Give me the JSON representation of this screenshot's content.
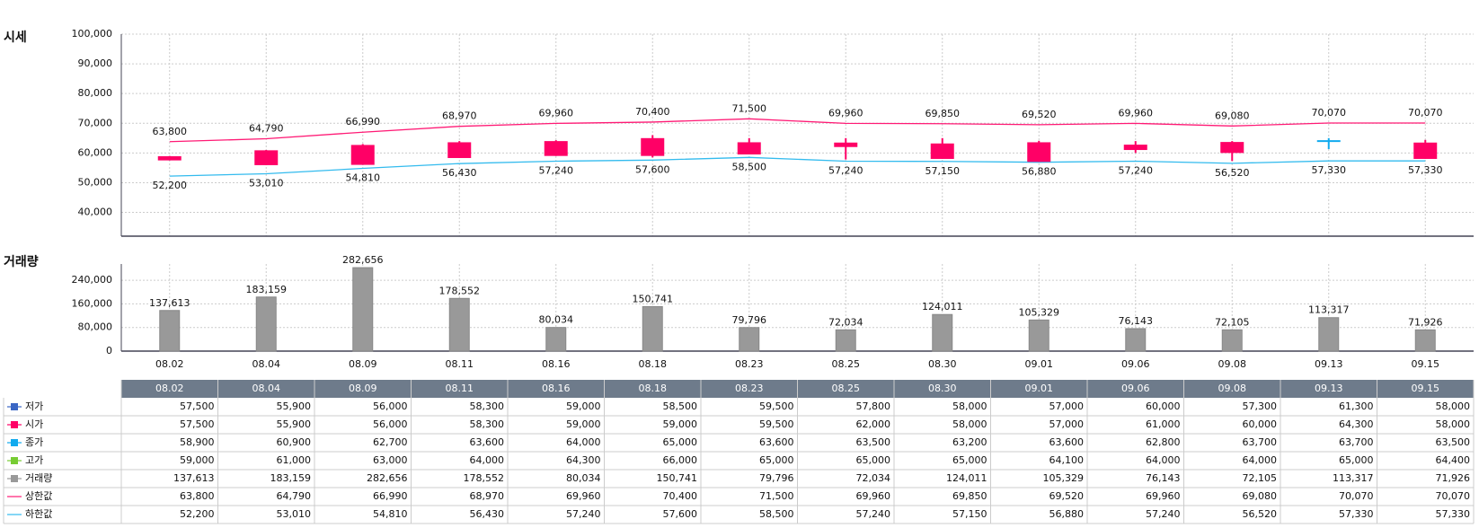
{
  "chart_data": {
    "type": "candlestick",
    "title": "시세",
    "volume_title": "거래량",
    "categories": [
      "08.02",
      "08.04",
      "08.09",
      "08.11",
      "08.16",
      "08.18",
      "08.23",
      "08.25",
      "08.30",
      "09.01",
      "09.06",
      "09.08",
      "09.13",
      "09.15"
    ],
    "up_color": "#ff0066",
    "down_color": "#11aaee",
    "grid": true,
    "ylim": [
      32000,
      100000
    ],
    "yticks": [
      {
        "value": 40000,
        "label": "40,000"
      },
      {
        "value": 50000,
        "label": "50,000"
      },
      {
        "value": 60000,
        "label": "60,000"
      },
      {
        "value": 70000,
        "label": "70,000"
      },
      {
        "value": 80000,
        "label": "80,000"
      },
      {
        "value": 90000,
        "label": "90,000"
      },
      {
        "value": 100000,
        "label": "100,000"
      }
    ],
    "y2lim": [
      0,
      295000
    ],
    "y2ticks": [
      0,
      {
        "value": 80000,
        "label": "80,000"
      },
      {
        "value": 160000,
        "label": "160,000"
      },
      {
        "value": 240000,
        "label": "240,000"
      }
    ],
    "series": [
      {
        "name": "저가",
        "kind": "low",
        "color": "#3a66c4",
        "values": [
          57500,
          55900,
          56000,
          58300,
          59000,
          58500,
          59500,
          57800,
          58000,
          57000,
          60000,
          57300,
          61300,
          58000
        ],
        "value_labels": [
          "57,500",
          "55,900",
          "56,000",
          "58,300",
          "59,000",
          "58,500",
          "59,500",
          "57,800",
          "58,000",
          "57,000",
          "60,000",
          "57,300",
          "61,300",
          "58,000"
        ]
      },
      {
        "name": "시가",
        "kind": "open",
        "color": "#ff0066",
        "values": [
          57500,
          55900,
          56000,
          58300,
          59000,
          59000,
          59500,
          62000,
          58000,
          57000,
          61000,
          60000,
          64300,
          58000
        ],
        "value_labels": [
          "57,500",
          "55,900",
          "56,000",
          "58,300",
          "59,000",
          "59,000",
          "59,500",
          "62,000",
          "58,000",
          "57,000",
          "61,000",
          "60,000",
          "64,300",
          "58,000"
        ]
      },
      {
        "name": "종가",
        "kind": "close",
        "color": "#11aaee",
        "values": [
          58900,
          60900,
          62700,
          63600,
          64000,
          65000,
          63600,
          63500,
          63200,
          63600,
          62800,
          63700,
          63700,
          63500
        ],
        "value_labels": [
          "58,900",
          "60,900",
          "62,700",
          "63,600",
          "64,000",
          "65,000",
          "63,600",
          "63,500",
          "63,200",
          "63,600",
          "62,800",
          "63,700",
          "63,700",
          "63,500"
        ]
      },
      {
        "name": "고가",
        "kind": "high",
        "color": "#77cc33",
        "values": [
          59000,
          61000,
          63000,
          64000,
          64300,
          66000,
          65000,
          65000,
          65000,
          64100,
          64000,
          64000,
          65000,
          64400
        ],
        "value_labels": [
          "59,000",
          "61,000",
          "63,000",
          "64,000",
          "64,300",
          "66,000",
          "65,000",
          "65,000",
          "65,000",
          "64,100",
          "64,000",
          "64,000",
          "65,000",
          "64,400"
        ]
      },
      {
        "name": "거래량",
        "kind": "volume",
        "axis": "y2",
        "color": "#999999",
        "values": [
          137613,
          183159,
          282656,
          178552,
          80034,
          150741,
          79796,
          72034,
          124011,
          105329,
          76143,
          72105,
          113317,
          71926
        ],
        "value_labels": [
          "137,613",
          "183,159",
          "282,656",
          "178,552",
          "80,034",
          "150,741",
          "79,796",
          "72,034",
          "124,011",
          "105,329",
          "76,143",
          "72,105",
          "113,317",
          "71,926"
        ]
      },
      {
        "name": "상한값",
        "kind": "upper",
        "color": "#ff1a75",
        "values": [
          63800,
          64790,
          66990,
          68970,
          69960,
          70400,
          71500,
          69960,
          69850,
          69520,
          69960,
          69080,
          70070,
          70070
        ],
        "value_labels": [
          "63,800",
          "64,790",
          "66,990",
          "68,970",
          "69,960",
          "70,400",
          "71,500",
          "69,960",
          "69,850",
          "69,520",
          "69,960",
          "69,080",
          "70,070",
          "70,070"
        ]
      },
      {
        "name": "하한값",
        "kind": "lower",
        "color": "#33bbee",
        "values": [
          52200,
          53010,
          54810,
          56430,
          57240,
          57600,
          58500,
          57240,
          57150,
          56880,
          57240,
          56520,
          57330,
          57330
        ],
        "value_labels": [
          "52,200",
          "53,010",
          "54,810",
          "56,430",
          "57,240",
          "57,600",
          "58,500",
          "57,240",
          "57,150",
          "56,880",
          "57,240",
          "56,520",
          "57,330",
          "57,330"
        ]
      }
    ]
  }
}
